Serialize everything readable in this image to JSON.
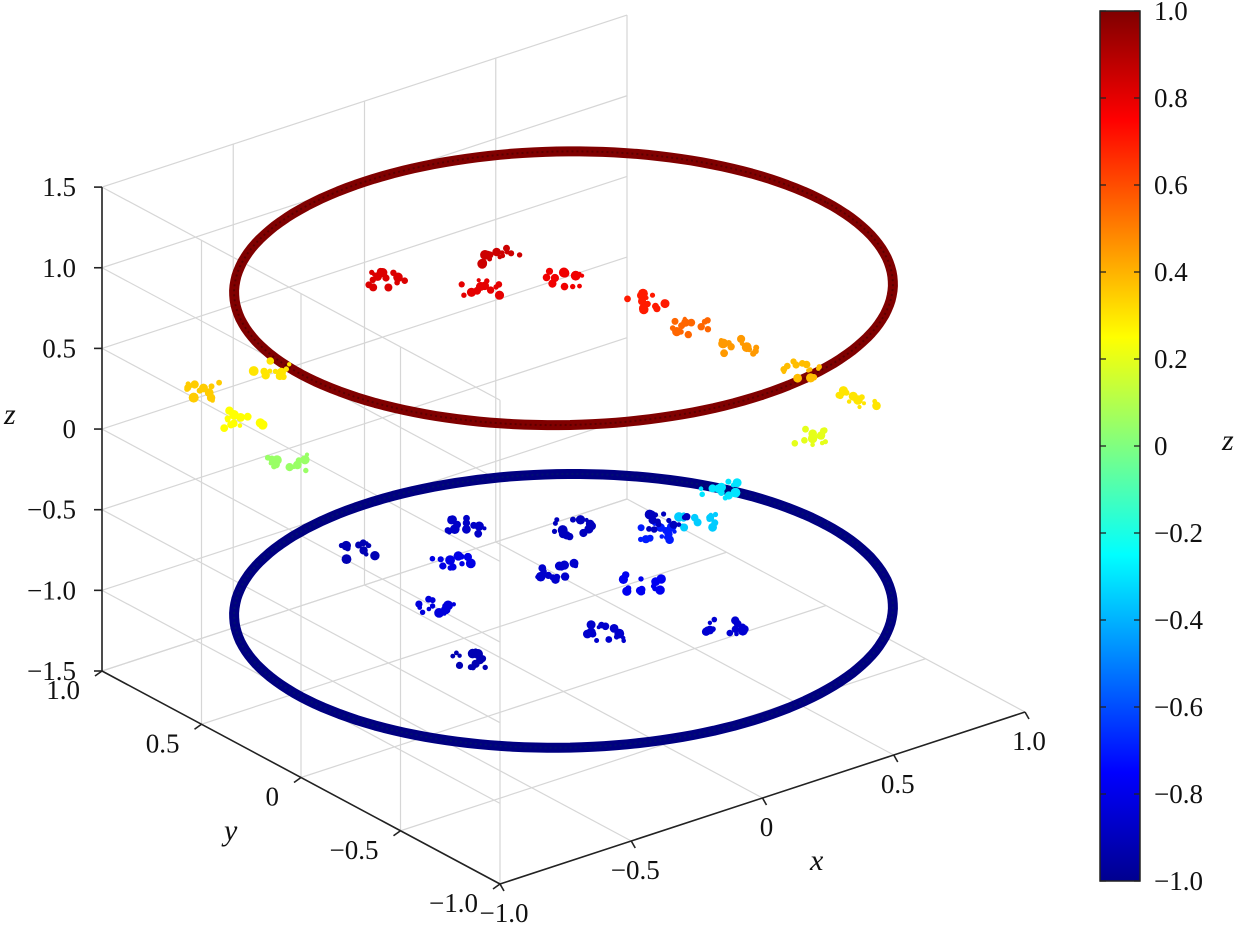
{
  "chart_data": {
    "type": "scatter",
    "title": "",
    "xlabel": "x",
    "ylabel": "y",
    "zlabel": "z",
    "xlim": [
      -1.0,
      1.0
    ],
    "ylim": [
      -1.0,
      1.0
    ],
    "zlim": [
      -1.5,
      1.5
    ],
    "x_ticks": [
      "−1.0",
      "−0.5",
      "0",
      "0.5",
      "1.0"
    ],
    "y_ticks": [
      "−1.0",
      "−0.5",
      "0",
      "0.5",
      "1.0"
    ],
    "z_ticks": [
      "−1.5",
      "−1.0",
      "−0.5",
      "0",
      "0.5",
      "1.0",
      "1.5"
    ],
    "grid": true,
    "colormap": "jet",
    "colorbar": {
      "label": "z",
      "range": [
        -1.0,
        1.0
      ],
      "ticks": [
        "−1.0",
        "−0.8",
        "−0.6",
        "−0.4",
        "−0.2",
        "0",
        "0.2",
        "0.4",
        "0.6",
        "0.8",
        "1.0"
      ],
      "placement": "right"
    },
    "series": [
      {
        "label": "upper ring",
        "shape": "circle",
        "z": 1.0,
        "radius": 1.0
      },
      {
        "label": "lower ring",
        "shape": "circle",
        "z": -1.0,
        "radius": 1.0
      },
      {
        "label": "scattered clusters",
        "points": [
          [
            0.1,
            0.45,
            0.85
          ],
          [
            -0.05,
            0.35,
            0.8
          ],
          [
            0.2,
            0.25,
            0.78
          ],
          [
            -0.25,
            0.55,
            0.82
          ],
          [
            0.35,
            0.05,
            0.7
          ],
          [
            0.45,
            -0.05,
            0.55
          ],
          [
            0.55,
            -0.15,
            0.45
          ],
          [
            0.65,
            -0.35,
            0.38
          ],
          [
            0.7,
            -0.55,
            0.3
          ],
          [
            0.5,
            -0.6,
            0.2
          ],
          [
            -0.8,
            0.55,
            0.25
          ],
          [
            -0.75,
            0.4,
            0.05
          ],
          [
            -0.85,
            0.7,
            0.35
          ],
          [
            -0.55,
            0.75,
            0.3
          ],
          [
            0.25,
            -0.35,
            -0.35
          ],
          [
            0.4,
            -0.25,
            -0.3
          ],
          [
            0.05,
            0.1,
            -0.85
          ],
          [
            -0.2,
            0.3,
            -0.8
          ],
          [
            -0.4,
            0.1,
            -0.82
          ],
          [
            0.15,
            -0.2,
            -0.78
          ],
          [
            0.3,
            0.35,
            -0.88
          ],
          [
            -0.1,
            -0.35,
            -0.85
          ],
          [
            0.35,
            0.0,
            -0.7
          ],
          [
            -0.5,
            -0.2,
            -0.9
          ],
          [
            0.05,
            0.55,
            -0.86
          ],
          [
            0.2,
            -0.55,
            -0.84
          ],
          [
            0.55,
            0.2,
            -0.88
          ],
          [
            -0.3,
            0.65,
            -0.9
          ]
        ]
      }
    ]
  }
}
